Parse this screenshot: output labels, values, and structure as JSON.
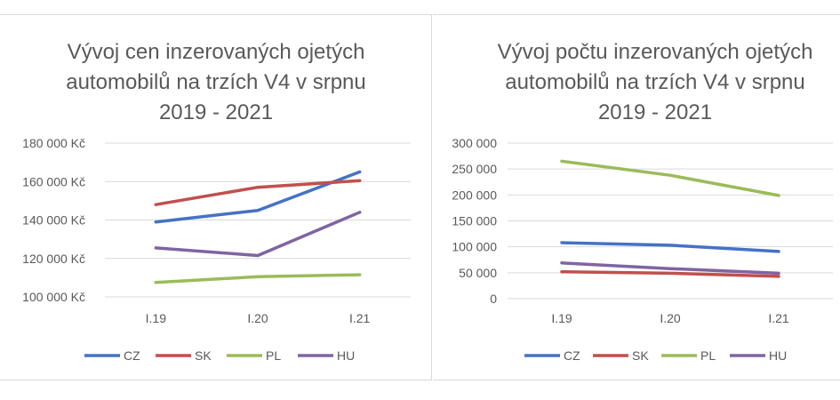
{
  "chart_data": [
    {
      "type": "line",
      "title_lines": [
        "Vývoj cen inzerovaných ojetých",
        "automobilů na trzích V4 v srpnu",
        "2019 - 2021"
      ],
      "categories": [
        "I.19",
        "I.20",
        "I.21"
      ],
      "y_ticks": [
        100000,
        120000,
        140000,
        160000,
        180000
      ],
      "y_tick_labels": [
        "100 000 Kč",
        "120 000 Kč",
        "140 000 Kč",
        "160 000 Kč",
        "180 000 Kč"
      ],
      "ylim": [
        100000,
        180000
      ],
      "grid": true,
      "legend_position": "bottom",
      "series": [
        {
          "name": "CZ",
          "color": "#4472c4",
          "values": [
            139000,
            145000,
            165000
          ]
        },
        {
          "name": "SK",
          "color": "#c0504d",
          "values": [
            148000,
            157000,
            160500
          ]
        },
        {
          "name": "PL",
          "color": "#9bbb59",
          "values": [
            107500,
            110500,
            111500
          ]
        },
        {
          "name": "HU",
          "color": "#8064a2",
          "values": [
            125500,
            121500,
            144000
          ]
        }
      ]
    },
    {
      "type": "line",
      "title_lines": [
        "Vývoj počtu inzerovaných ojetých",
        "automobilů na trzích V4 v srpnu",
        "2019 - 2021"
      ],
      "categories": [
        "I.19",
        "I.20",
        "I.21"
      ],
      "y_ticks": [
        0,
        50000,
        100000,
        150000,
        200000,
        250000,
        300000
      ],
      "y_tick_labels": [
        "0",
        "50 000",
        "100 000",
        "150 000",
        "200 000",
        "250 000",
        "300 000"
      ],
      "ylim": [
        0,
        300000
      ],
      "grid": true,
      "legend_position": "bottom",
      "series": [
        {
          "name": "CZ",
          "color": "#4472c4",
          "values": [
            108000,
            103000,
            91000
          ]
        },
        {
          "name": "SK",
          "color": "#c0504d",
          "values": [
            52000,
            49000,
            43000
          ]
        },
        {
          "name": "PL",
          "color": "#9bbb59",
          "values": [
            265000,
            238000,
            199000
          ]
        },
        {
          "name": "HU",
          "color": "#8064a2",
          "values": [
            69000,
            58000,
            49000
          ]
        }
      ]
    }
  ]
}
